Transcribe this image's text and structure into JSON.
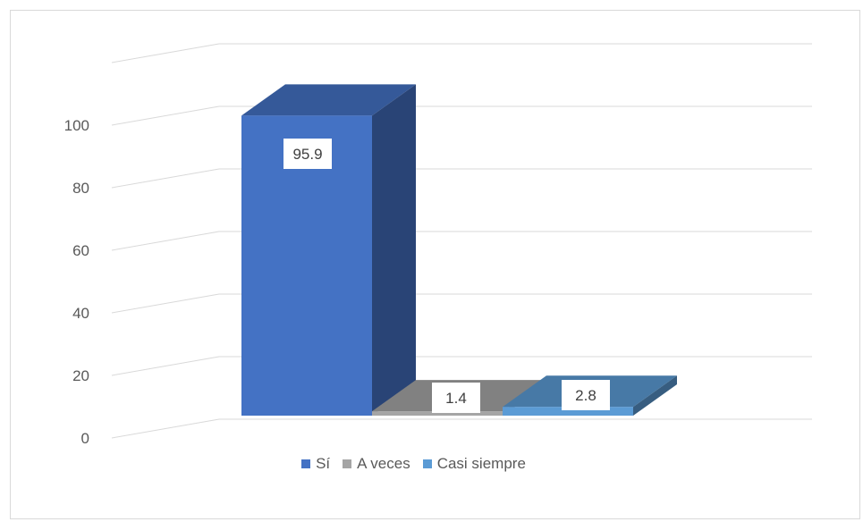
{
  "chart_data": {
    "type": "bar",
    "style": "3d-clustered",
    "categories": [
      ""
    ],
    "series": [
      {
        "name": "Sí",
        "values": [
          95.9
        ],
        "color": "#4472c4",
        "label": "95.9"
      },
      {
        "name": "A veces",
        "values": [
          1.4
        ],
        "color": "#a5a5a5",
        "label": "1.4"
      },
      {
        "name": "Casi siempre",
        "values": [
          2.8
        ],
        "color": "#5b9bd5",
        "label": "2.8"
      }
    ],
    "ylim": [
      0,
      120
    ],
    "yticks": [
      "0",
      "20",
      "40",
      "60",
      "80",
      "100"
    ],
    "grid": true,
    "legend_position": "bottom",
    "title": "",
    "xlabel": "",
    "ylabel": ""
  }
}
